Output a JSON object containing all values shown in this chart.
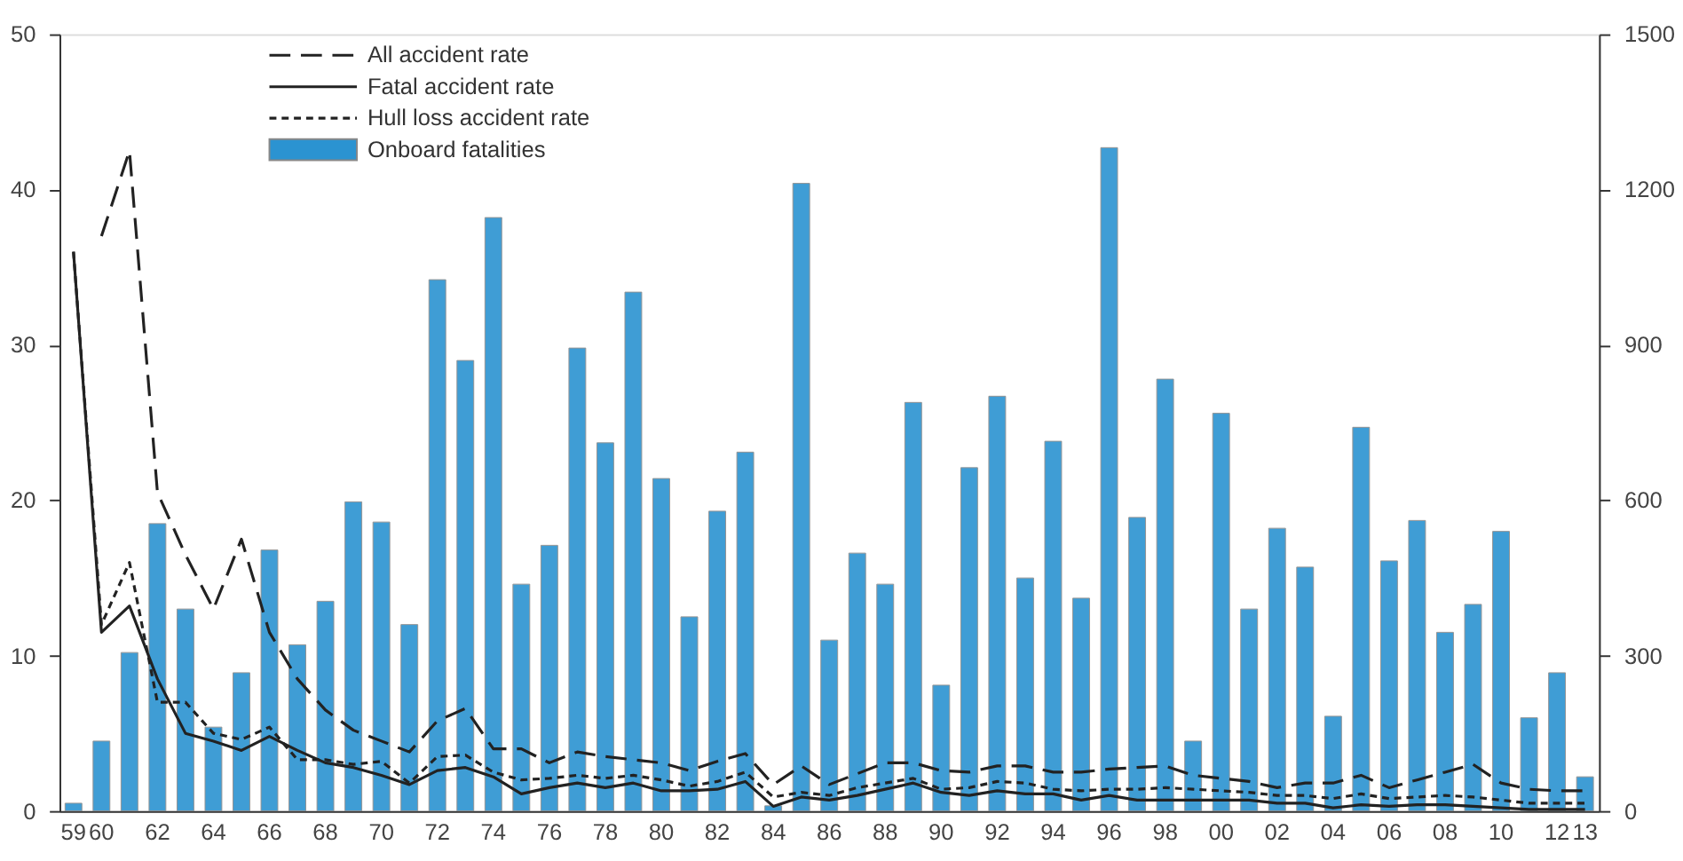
{
  "chart_data": {
    "type": "line",
    "categories": [
      "59",
      "60",
      null,
      "62",
      null,
      "64",
      null,
      "66",
      null,
      "68",
      null,
      "70",
      null,
      "72",
      null,
      "74",
      null,
      "76",
      null,
      "78",
      null,
      "80",
      null,
      "82",
      null,
      "84",
      null,
      "86",
      null,
      "88",
      null,
      "90",
      null,
      "92",
      null,
      "94",
      null,
      "96",
      null,
      "98",
      null,
      "00",
      null,
      "02",
      null,
      "04",
      null,
      "06",
      null,
      "08",
      null,
      "10",
      null,
      "12",
      "13"
    ],
    "series": [
      {
        "name": "All accident rate",
        "line_style": "dashed",
        "color": "#222222",
        "values": [
          null,
          37,
          42.5,
          20.5,
          16.5,
          13,
          17.5,
          11.5,
          8.5,
          6.5,
          5.2,
          4.5,
          3.8,
          5.8,
          6.6,
          4,
          4,
          3.1,
          3.8,
          3.5,
          3.3,
          3.1,
          2.6,
          3.2,
          3.7,
          1.7,
          2.9,
          1.7,
          2.4,
          3.1,
          3.1,
          2.6,
          2.5,
          2.9,
          2.9,
          2.5,
          2.5,
          2.7,
          2.8,
          2.9,
          2.3,
          2.1,
          1.9,
          1.5,
          1.8,
          1.8,
          2.3,
          1.5,
          2.0,
          2.5,
          3.0,
          1.8,
          1.4,
          1.3,
          1.3
        ]
      },
      {
        "name": "Fatal accident rate",
        "line_style": "solid",
        "color": "#222222",
        "values": [
          36,
          11.5,
          13.2,
          8.5,
          5,
          4.5,
          3.9,
          4.8,
          3.9,
          3.1,
          2.8,
          2.3,
          1.7,
          2.6,
          2.8,
          2.2,
          1.1,
          1.5,
          1.8,
          1.5,
          1.8,
          1.3,
          1.3,
          1.4,
          1.9,
          0.3,
          0.9,
          0.7,
          1.0,
          1.4,
          1.8,
          1.2,
          1.0,
          1.3,
          1.1,
          1.1,
          0.7,
          1.0,
          0.7,
          0.7,
          0.7,
          0.7,
          0.7,
          0.5,
          0.5,
          0.2,
          0.4,
          0.3,
          0.4,
          0.4,
          0.3,
          0.2,
          0.1,
          0.1,
          0.1
        ]
      },
      {
        "name": "Hull loss accident rate",
        "line_style": "dotted",
        "color": "#222222",
        "values": [
          36,
          12,
          16,
          7,
          7,
          5,
          4.6,
          5.4,
          3.3,
          3.3,
          3,
          3.2,
          1.8,
          3.5,
          3.6,
          2.5,
          2.0,
          2.1,
          2.3,
          2.1,
          2.3,
          2.0,
          1.6,
          1.9,
          2.5,
          0.9,
          1.2,
          1.0,
          1.5,
          1.8,
          2.1,
          1.4,
          1.5,
          1.9,
          1.8,
          1.4,
          1.3,
          1.4,
          1.4,
          1.5,
          1.4,
          1.3,
          1.2,
          1.0,
          1.0,
          0.8,
          1.1,
          0.8,
          0.9,
          1.0,
          0.9,
          0.7,
          0.5,
          0.5,
          0.5
        ]
      },
      {
        "name": "Onboard fatalities",
        "type": "bar",
        "axis": "y2",
        "color": "#2b93d1",
        "values": [
          15,
          135,
          306,
          555,
          390,
          162,
          267,
          504,
          321,
          405,
          597,
          558,
          360,
          1026,
          870,
          1146,
          438,
          513,
          894,
          711,
          1002,
          642,
          375,
          579,
          693,
          10,
          1212,
          330,
          498,
          438,
          789,
          243,
          663,
          801,
          450,
          714,
          411,
          1281,
          567,
          834,
          135,
          768,
          390,
          546,
          471,
          183,
          741,
          483,
          561,
          345,
          399,
          540,
          180,
          267,
          66
        ]
      }
    ],
    "ylim": [
      0,
      50
    ],
    "yticks": [
      0,
      10,
      20,
      30,
      40,
      50
    ],
    "y2lim": [
      0,
      1500
    ],
    "y2ticks": [
      0,
      300,
      600,
      900,
      1200,
      1500
    ],
    "grid": false,
    "legend": "top left"
  }
}
